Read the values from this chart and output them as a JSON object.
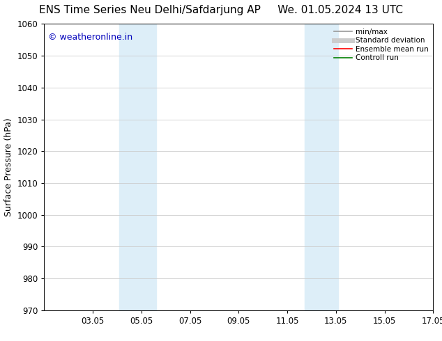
{
  "title_left": "ENS Time Series Neu Delhi/Safdarjung AP",
  "title_right": "We. 01.05.2024 13 UTC",
  "ylabel": "Surface Pressure (hPa)",
  "ylim": [
    970,
    1060
  ],
  "yticks": [
    970,
    980,
    990,
    1000,
    1010,
    1020,
    1030,
    1040,
    1050,
    1060
  ],
  "xlim": [
    1,
    17
  ],
  "xtick_labels": [
    "03.05",
    "05.05",
    "07.05",
    "09.05",
    "11.05",
    "13.05",
    "15.05",
    "17.05"
  ],
  "xtick_positions": [
    3,
    5,
    7,
    9,
    11,
    13,
    15,
    17
  ],
  "shaded_bands": [
    {
      "x_start": 4.1,
      "x_end": 5.6,
      "color": "#ddeef8"
    },
    {
      "x_start": 11.7,
      "x_end": 13.1,
      "color": "#ddeef8"
    }
  ],
  "watermark_text": "© weatheronline.in",
  "watermark_color": "#0000bb",
  "watermark_fontsize": 9,
  "legend_entries": [
    {
      "label": "min/max",
      "color": "#999999",
      "lw": 1.2,
      "style": "solid"
    },
    {
      "label": "Standard deviation",
      "color": "#cccccc",
      "lw": 5,
      "style": "solid"
    },
    {
      "label": "Ensemble mean run",
      "color": "#ff0000",
      "lw": 1.2,
      "style": "solid"
    },
    {
      "label": "Controll run",
      "color": "#008000",
      "lw": 1.2,
      "style": "solid"
    }
  ],
  "title_fontsize": 11,
  "axis_label_fontsize": 9,
  "tick_fontsize": 8.5,
  "background_color": "#ffffff",
  "plot_bg_color": "#ffffff",
  "grid_color": "#cccccc",
  "border_color": "#000000"
}
